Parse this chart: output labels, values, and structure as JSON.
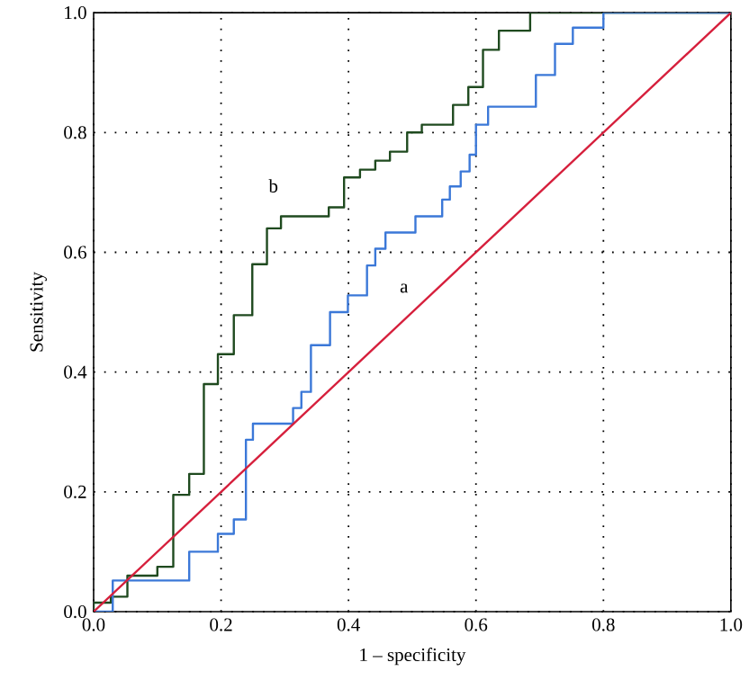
{
  "chart_data": {
    "type": "step",
    "xlabel": "1 – specificity",
    "ylabel": "Sensitivity",
    "xlim": [
      0,
      1
    ],
    "ylim": [
      0,
      1
    ],
    "xticks": [
      {
        "value": 0,
        "label": "0.0"
      },
      {
        "value": 0.2,
        "label": "0.2"
      },
      {
        "value": 0.4,
        "label": "0.4"
      },
      {
        "value": 0.6,
        "label": "0.6"
      },
      {
        "value": 0.8,
        "label": "0.8"
      },
      {
        "value": 1,
        "label": "1.0"
      }
    ],
    "yticks": [
      {
        "value": 0,
        "label": "0.0"
      },
      {
        "value": 0.2,
        "label": "0.2"
      },
      {
        "value": 0.4,
        "label": "0.4"
      },
      {
        "value": 0.6,
        "label": "0.6"
      },
      {
        "value": 0.8,
        "label": "0.8"
      },
      {
        "value": 1,
        "label": "1.0"
      }
    ],
    "grid": true,
    "legend": false,
    "marker": "none",
    "line_style": "solid",
    "series": [
      {
        "name": "b",
        "color": "#1f4a1f",
        "x": [
          0,
          0,
          0.027,
          0.053,
          0.1,
          0.125,
          0.15,
          0.173,
          0.195,
          0.22,
          0.249,
          0.272,
          0.294,
          0.369,
          0.393,
          0.418,
          0.442,
          0.465,
          0.492,
          0.515,
          0.564,
          0.588,
          0.611,
          0.636,
          0.685,
          1
        ],
        "values": [
          0,
          0.015,
          0.025,
          0.06,
          0.075,
          0.195,
          0.23,
          0.38,
          0.43,
          0.495,
          0.58,
          0.64,
          0.66,
          0.675,
          0.725,
          0.738,
          0.753,
          0.768,
          0.8,
          0.813,
          0.846,
          0.876,
          0.938,
          0.97,
          1.0,
          1.0
        ]
      },
      {
        "name": "a",
        "color": "#3b78d8",
        "x": [
          0,
          0.03,
          0.15,
          0.195,
          0.22,
          0.239,
          0.25,
          0.313,
          0.326,
          0.341,
          0.371,
          0.399,
          0.429,
          0.442,
          0.458,
          0.505,
          0.547,
          0.559,
          0.576,
          0.59,
          0.6,
          0.619,
          0.694,
          0.724,
          0.752,
          0.8,
          1
        ],
        "values": [
          0,
          0.052,
          0.1,
          0.13,
          0.154,
          0.287,
          0.314,
          0.34,
          0.367,
          0.445,
          0.5,
          0.528,
          0.578,
          0.606,
          0.633,
          0.66,
          0.688,
          0.71,
          0.735,
          0.763,
          0.813,
          0.843,
          0.896,
          0.948,
          0.975,
          1.0,
          1.0
        ]
      },
      {
        "type": "line",
        "color": "#d61f3c",
        "x": [
          0,
          1
        ],
        "values": [
          0,
          1
        ]
      }
    ]
  }
}
